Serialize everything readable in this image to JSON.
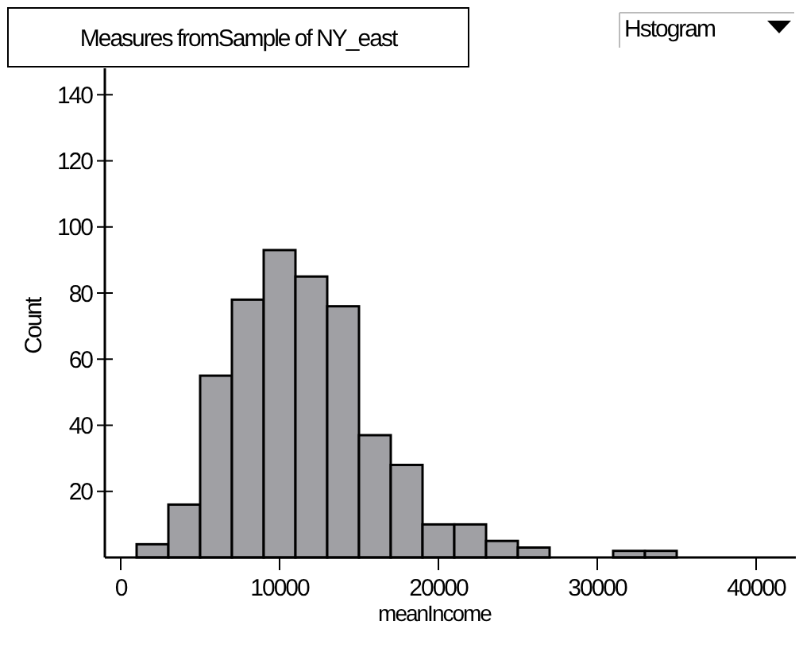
{
  "chart_data": {
    "type": "histogram",
    "title": "Measures fromSample of NY_east",
    "xlabel": "meanIncome",
    "ylabel": "Count",
    "annotations": [
      "Hstogram"
    ],
    "bins": [
      1000,
      3000,
      5000,
      7000,
      9000,
      11000,
      13000,
      15000,
      17000,
      19000,
      21000,
      23000,
      25000,
      27000,
      29000,
      31000,
      33000,
      35000
    ],
    "values": [
      4,
      16,
      55,
      78,
      93,
      85,
      76,
      37,
      28,
      10,
      10,
      5,
      3,
      0,
      0,
      2,
      2
    ],
    "color": "#a0a0a4",
    "xlim": [
      -1000,
      42500
    ],
    "xticks": [
      0,
      10000,
      20000,
      30000,
      40000
    ],
    "ylim": [
      0,
      148
    ],
    "yticks": [
      20,
      40,
      60,
      80,
      100,
      120,
      140
    ],
    "grid": false
  }
}
